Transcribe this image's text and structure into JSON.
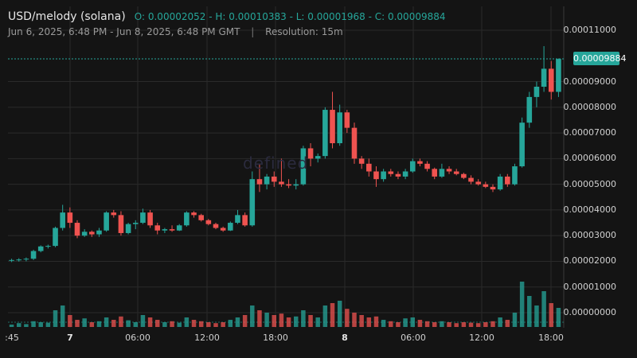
{
  "header": {
    "symbol": "USD/melody (solana)",
    "ohlc": "O: 0.00002052 - H: 0.00010383 - L: 0.00001968 - C: 0.00009884",
    "range": "Jun 6, 2025, 6:48 PM - Jun 8, 2025, 6:48 PM GMT",
    "separator": "|",
    "resolution": "Resolution: 15m"
  },
  "watermark": "defined",
  "current_price_label": "0.00009884",
  "colors": {
    "up": "#26a69a",
    "down": "#ef5350",
    "background": "#141414",
    "grid": "#2a2a2a"
  },
  "chart_data": {
    "type": "candlestick",
    "y_tick_labels": [
      "0.00011000",
      "0.00009000",
      "0.00008000",
      "0.00007000",
      "0.00006000",
      "0.00005000",
      "0.00004000",
      "0.00003000",
      "0.00002000",
      "0.00001000",
      "0.00000000"
    ],
    "x_tick_labels": [
      ":45",
      "7",
      "06:00",
      "12:00",
      "18:00",
      "8",
      "06:00",
      "12:00",
      "18:00"
    ],
    "current_price": 9.884e-05,
    "price_candles_hourly_open_high_low_close": [
      [
        2.05e-05,
        2.1e-05,
        1.97e-05,
        2.05e-05
      ],
      [
        2.05e-05,
        2.12e-05,
        1.99e-05,
        2.07e-05
      ],
      [
        2.07e-05,
        2.15e-05,
        2e-05,
        2.1e-05
      ],
      [
        2.1e-05,
        2.45e-05,
        2.05e-05,
        2.4e-05
      ],
      [
        2.4e-05,
        2.62e-05,
        2.35e-05,
        2.58e-05
      ],
      [
        2.58e-05,
        2.65e-05,
        2.5e-05,
        2.6e-05
      ],
      [
        2.6e-05,
        3.35e-05,
        2.55e-05,
        3.3e-05
      ],
      [
        3.3e-05,
        4.2e-05,
        3.2e-05,
        3.9e-05
      ],
      [
        3.9e-05,
        4.1e-05,
        3.3e-05,
        3.5e-05
      ],
      [
        3.5e-05,
        3.6e-05,
        2.9e-05,
        3e-05
      ],
      [
        3e-05,
        3.25e-05,
        2.95e-05,
        3.15e-05
      ],
      [
        3.15e-05,
        3.2e-05,
        2.95e-05,
        3.05e-05
      ],
      [
        3.05e-05,
        3.3e-05,
        2.95e-05,
        3.2e-05
      ],
      [
        3.2e-05,
        3.95e-05,
        3.15e-05,
        3.9e-05
      ],
      [
        3.9e-05,
        4e-05,
        3.7e-05,
        3.8e-05
      ],
      [
        3.8e-05,
        3.95e-05,
        3e-05,
        3.1e-05
      ],
      [
        3.1e-05,
        3.5e-05,
        3.05e-05,
        3.45e-05
      ],
      [
        3.45e-05,
        3.6e-05,
        3.25e-05,
        3.5e-05
      ],
      [
        3.5e-05,
        4.05e-05,
        3.45e-05,
        3.9e-05
      ],
      [
        3.9e-05,
        4e-05,
        3.3e-05,
        3.4e-05
      ],
      [
        3.4e-05,
        3.5e-05,
        3.05e-05,
        3.2e-05
      ],
      [
        3.2e-05,
        3.3e-05,
        3.1e-05,
        3.25e-05
      ],
      [
        3.25e-05,
        3.4e-05,
        3.15e-05,
        3.2e-05
      ],
      [
        3.2e-05,
        3.45e-05,
        3.18e-05,
        3.4e-05
      ],
      [
        3.4e-05,
        3.95e-05,
        3.35e-05,
        3.9e-05
      ],
      [
        3.9e-05,
        3.95e-05,
        3.7e-05,
        3.8e-05
      ],
      [
        3.8e-05,
        3.85e-05,
        3.55e-05,
        3.6e-05
      ],
      [
        3.6e-05,
        3.65e-05,
        3.4e-05,
        3.45e-05
      ],
      [
        3.45e-05,
        3.5e-05,
        3.25e-05,
        3.3e-05
      ],
      [
        3.3e-05,
        3.35e-05,
        3.15e-05,
        3.2e-05
      ],
      [
        3.2e-05,
        3.55e-05,
        3.18e-05,
        3.5e-05
      ],
      [
        3.5e-05,
        4e-05,
        3.45e-05,
        3.8e-05
      ],
      [
        3.8e-05,
        3.9e-05,
        3.35e-05,
        3.4e-05
      ],
      [
        3.4e-05,
        5.5e-05,
        3.35e-05,
        5.2e-05
      ],
      [
        5.2e-05,
        5.8e-05,
        4.7e-05,
        5e-05
      ],
      [
        5e-05,
        5.4e-05,
        4.8e-05,
        5.3e-05
      ],
      [
        5.3e-05,
        5.5e-05,
        4.9e-05,
        5.1e-05
      ],
      [
        5.1e-05,
        6e-05,
        4.9e-05,
        5e-05
      ],
      [
        5e-05,
        5.2e-05,
        4.85e-05,
        4.95e-05
      ],
      [
        4.95e-05,
        5.2e-05,
        4.8e-05,
        5e-05
      ],
      [
        5e-05,
        6.5e-05,
        4.95e-05,
        6.4e-05
      ],
      [
        6.4e-05,
        6.6e-05,
        5.7e-05,
        6e-05
      ],
      [
        6e-05,
        6.2e-05,
        5.85e-05,
        6.1e-05
      ],
      [
        6.1e-05,
        8e-05,
        6e-05,
        7.9e-05
      ],
      [
        7.9e-05,
        8.6e-05,
        6.4e-05,
        6.6e-05
      ],
      [
        6.6e-05,
        8.1e-05,
        6.5e-05,
        7.8e-05
      ],
      [
        7.8e-05,
        7.9e-05,
        7e-05,
        7.2e-05
      ],
      [
        7.2e-05,
        7.4e-05,
        5.8e-05,
        6e-05
      ],
      [
        6e-05,
        6.1e-05,
        5.6e-05,
        5.8e-05
      ],
      [
        5.8e-05,
        6e-05,
        5.3e-05,
        5.5e-05
      ],
      [
        5.5e-05,
        5.7e-05,
        4.9e-05,
        5.2e-05
      ],
      [
        5.2e-05,
        5.6e-05,
        5.1e-05,
        5.5e-05
      ],
      [
        5.5e-05,
        5.6e-05,
        5.3e-05,
        5.4e-05
      ],
      [
        5.4e-05,
        5.5e-05,
        5.2e-05,
        5.3e-05
      ],
      [
        5.3e-05,
        5.6e-05,
        5.2e-05,
        5.5e-05
      ],
      [
        5.5e-05,
        6e-05,
        5.45e-05,
        5.9e-05
      ],
      [
        5.9e-05,
        6e-05,
        5.7e-05,
        5.8e-05
      ],
      [
        5.8e-05,
        5.9e-05,
        5.5e-05,
        5.6e-05
      ],
      [
        5.6e-05,
        5.65e-05,
        5.2e-05,
        5.3e-05
      ],
      [
        5.3e-05,
        5.8e-05,
        5.25e-05,
        5.6e-05
      ],
      [
        5.6e-05,
        5.7e-05,
        5.4e-05,
        5.5e-05
      ],
      [
        5.5e-05,
        5.6e-05,
        5.35e-05,
        5.4e-05
      ],
      [
        5.4e-05,
        5.45e-05,
        5.2e-05,
        5.25e-05
      ],
      [
        5.25e-05,
        5.35e-05,
        5e-05,
        5.1e-05
      ],
      [
        5.1e-05,
        5.2e-05,
        4.95e-05,
        5e-05
      ],
      [
        5e-05,
        5.1e-05,
        4.85e-05,
        4.9e-05
      ],
      [
        4.9e-05,
        5e-05,
        4.7e-05,
        4.8e-05
      ],
      [
        4.8e-05,
        5.4e-05,
        4.75e-05,
        5.3e-05
      ],
      [
        5.3e-05,
        5.4e-05,
        4.9e-05,
        5e-05
      ],
      [
        5e-05,
        5.8e-05,
        4.95e-05,
        5.7e-05
      ],
      [
        5.7e-05,
        7.6e-05,
        5.65e-05,
        7.4e-05
      ],
      [
        7.4e-05,
        8.6e-05,
        7.2e-05,
        8.4e-05
      ],
      [
        8.4e-05,
        9e-05,
        8e-05,
        8.8e-05
      ],
      [
        8.8e-05,
        0.0001038,
        8.6e-05,
        9.5e-05
      ],
      [
        9.5e-05,
        9.8e-05,
        8.3e-05,
        8.6e-05
      ],
      [
        8.6e-05,
        9.9e-05,
        8.4e-05,
        9.88e-05
      ]
    ],
    "volume_scale_0_to_1": [
      0.05,
      0.08,
      0.06,
      0.12,
      0.1,
      0.09,
      0.35,
      0.45,
      0.25,
      0.15,
      0.18,
      0.1,
      0.12,
      0.2,
      0.15,
      0.22,
      0.14,
      0.1,
      0.25,
      0.2,
      0.15,
      0.1,
      0.12,
      0.09,
      0.2,
      0.15,
      0.12,
      0.1,
      0.08,
      0.1,
      0.15,
      0.2,
      0.25,
      0.45,
      0.35,
      0.3,
      0.25,
      0.28,
      0.2,
      0.22,
      0.35,
      0.25,
      0.2,
      0.45,
      0.5,
      0.55,
      0.38,
      0.3,
      0.25,
      0.2,
      0.22,
      0.15,
      0.12,
      0.1,
      0.18,
      0.2,
      0.15,
      0.12,
      0.1,
      0.12,
      0.1,
      0.08,
      0.1,
      0.09,
      0.08,
      0.1,
      0.12,
      0.2,
      0.15,
      0.3,
      0.95,
      0.65,
      0.45,
      0.75,
      0.5,
      0.4
    ]
  }
}
